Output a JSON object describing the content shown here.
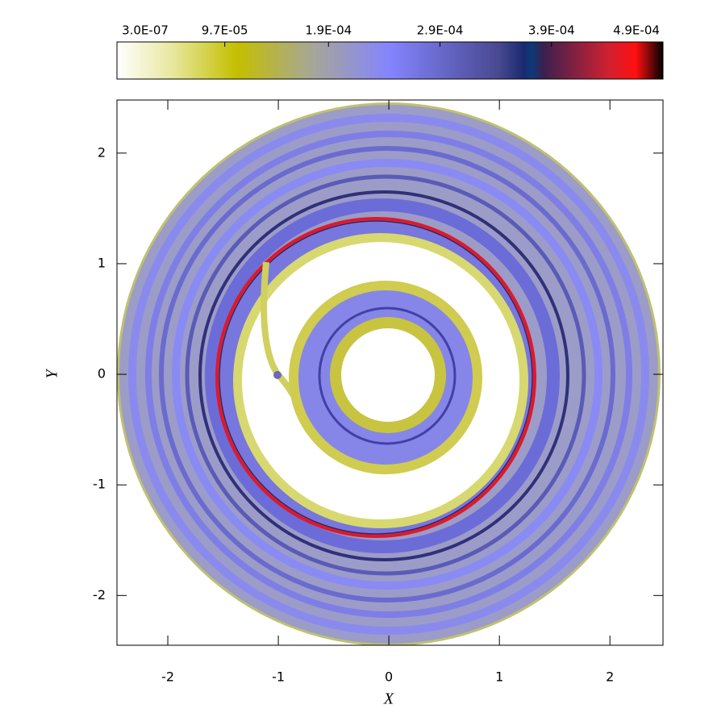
{
  "chart_data": {
    "type": "image",
    "x_label": "X",
    "y_label": "Y",
    "xlim": [
      -2.46,
      2.48
    ],
    "ylim": [
      -2.45,
      2.48
    ],
    "xticks": [
      -2,
      -1,
      0,
      1,
      2
    ],
    "yticks": [
      -2,
      -1,
      0,
      1,
      2
    ],
    "colorbar": {
      "lim": [
        3e-07,
        0.00049
      ],
      "ticks": [
        {
          "value": 3e-07,
          "label": "3.0E-07"
        },
        {
          "value": 9.7e-05,
          "label": "9.7E-05"
        },
        {
          "value": 0.00019,
          "label": "1.9E-04"
        },
        {
          "value": 0.00029,
          "label": "2.9E-04"
        },
        {
          "value": 0.00039,
          "label": "3.9E-04"
        },
        {
          "value": 0.00049,
          "label": "4.9E-04"
        }
      ]
    }
  }
}
